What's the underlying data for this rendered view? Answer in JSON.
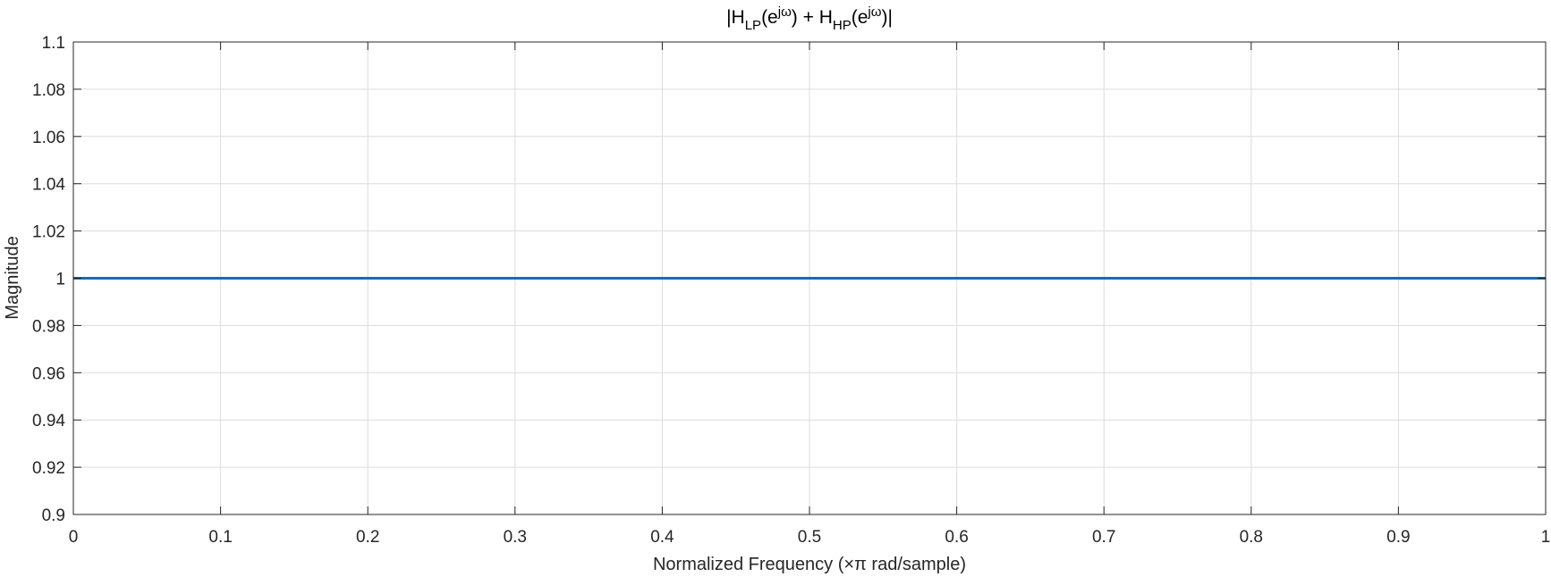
{
  "chart_data": {
    "type": "line",
    "title": {
      "open": "|H",
      "sub1": "LP",
      "mid1": "(e",
      "sup1": "jω",
      "mid2": ") + H",
      "sub2": "HP",
      "mid3": "(e",
      "sup2": "jω",
      "close": ")|"
    },
    "xlabel": "Normalized Frequency (×π rad/sample)",
    "ylabel": "Magnitude",
    "xlim": [
      0,
      1
    ],
    "ylim": [
      0.9,
      1.1
    ],
    "x_ticks": [
      0,
      0.1,
      0.2,
      0.3,
      0.4,
      0.5,
      0.6,
      0.7,
      0.8,
      0.9,
      1
    ],
    "x_tick_labels": [
      "0",
      "0.1",
      "0.2",
      "0.3",
      "0.4",
      "0.5",
      "0.6",
      "0.7",
      "0.8",
      "0.9",
      "1"
    ],
    "y_ticks": [
      0.9,
      0.92,
      0.94,
      0.96,
      0.98,
      1,
      1.02,
      1.04,
      1.06,
      1.08,
      1.1
    ],
    "y_tick_labels": [
      "0.9",
      "0.92",
      "0.94",
      "0.96",
      "0.98",
      "1",
      "1.02",
      "1.04",
      "1.06",
      "1.08",
      "1.1"
    ],
    "grid": true,
    "series": [
      {
        "color": "#0072bd",
        "x": [
          0,
          0.1,
          0.2,
          0.3,
          0.4,
          0.5,
          0.6,
          0.7,
          0.8,
          0.9,
          1
        ],
        "y": [
          1,
          1,
          1,
          1,
          1,
          1,
          1,
          1,
          1,
          1,
          1
        ]
      }
    ]
  }
}
